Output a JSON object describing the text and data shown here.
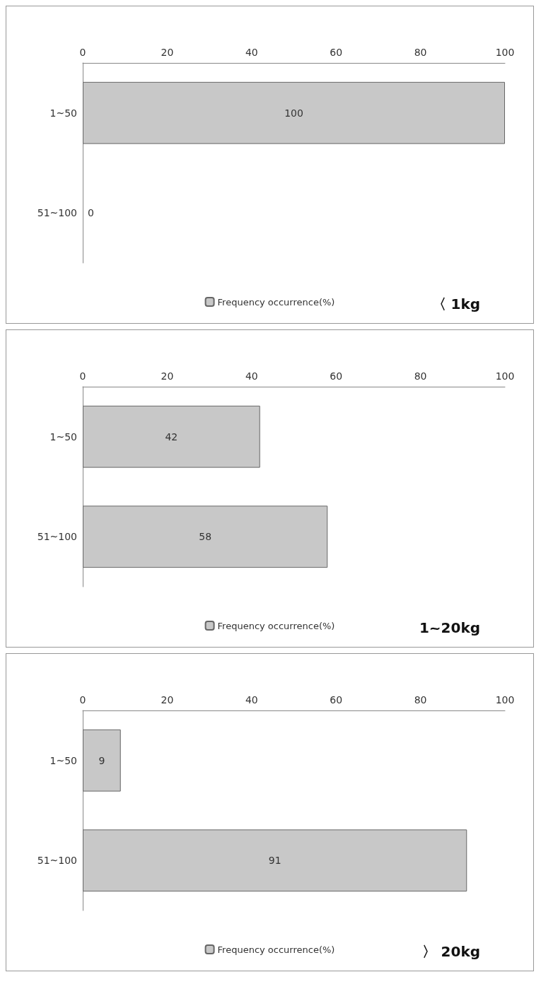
{
  "chart_data": [
    {
      "type": "bar",
      "orientation": "horizontal",
      "title": "〈 1kg",
      "categories": [
        "1~50",
        "51~100"
      ],
      "series": [
        {
          "name": "Frequency occurrence(%)",
          "color": "#c8c8c8",
          "values": [
            100,
            0
          ]
        }
      ],
      "xlim": [
        0,
        100
      ],
      "xticks": [
        0,
        20,
        40,
        60,
        80,
        100
      ],
      "data_labels": true,
      "grid": false,
      "legend": "bottom"
    },
    {
      "type": "bar",
      "orientation": "horizontal",
      "title": "1~20kg",
      "categories": [
        "1~50",
        "51~100"
      ],
      "series": [
        {
          "name": "Frequency occurrence(%)",
          "color": "#c8c8c8",
          "values": [
            42,
            58
          ]
        }
      ],
      "xlim": [
        0,
        100
      ],
      "xticks": [
        0,
        20,
        40,
        60,
        80,
        100
      ],
      "data_labels": true,
      "grid": false,
      "legend": "bottom"
    },
    {
      "type": "bar",
      "orientation": "horizontal",
      "title": "〉 20kg",
      "categories": [
        "1~50",
        "51~100"
      ],
      "series": [
        {
          "name": "Frequency occurrence(%)",
          "color": "#c8c8c8",
          "values": [
            9,
            91
          ]
        }
      ],
      "xlim": [
        0,
        100
      ],
      "xticks": [
        0,
        20,
        40,
        60,
        80,
        100
      ],
      "data_labels": true,
      "grid": false,
      "legend": "bottom"
    }
  ]
}
